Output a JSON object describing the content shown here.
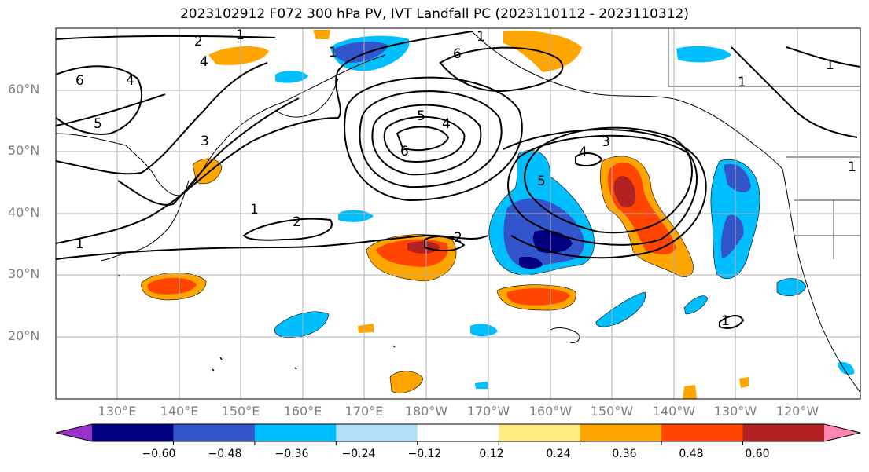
{
  "title": "2023102912 F072 300 hPa PV, IVT Landfall PC (2023110112 - 2023110312)",
  "map": {
    "region": "North Pacific",
    "lat_labels": [
      "60°N",
      "50°N",
      "40°N",
      "30°N",
      "20°N"
    ],
    "lon_labels": [
      "130°E",
      "140°E",
      "150°E",
      "160°E",
      "170°E",
      "180°W",
      "170°W",
      "160°W",
      "150°W",
      "140°W",
      "130°W",
      "120°W"
    ],
    "contour_labels": [
      "1",
      "2",
      "3",
      "4",
      "5",
      "6"
    ],
    "gridlines": true
  },
  "colorbar": {
    "ticks": [
      "−0.60",
      "−0.48",
      "−0.36",
      "−0.24",
      "−0.12",
      "0.12",
      "0.24",
      "0.36",
      "0.48",
      "0.60"
    ],
    "colors": [
      "#9933cc",
      "#000080",
      "#3355cc",
      "#00bfff",
      "#b0e0fa",
      "#ffffff",
      "#ffec80",
      "#ffa500",
      "#ff4500",
      "#b22222",
      "#ff85b3"
    ]
  }
}
